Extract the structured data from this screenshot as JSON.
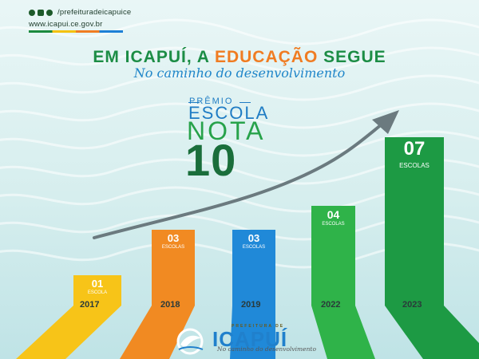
{
  "header": {
    "social_handle": "/prefeituradeicapuice",
    "website": "www.icapui.ce.gov.br",
    "social_icons": [
      "facebook-icon",
      "instagram-icon",
      "youtube-icon"
    ]
  },
  "headline": {
    "part1": "EM  ICAPUÍ, A ",
    "part2": "EDUCAÇÃO",
    "part3": " SEGUE",
    "tagline": "No caminho do desenvolvimento"
  },
  "award": {
    "line1": "PRÊMIO",
    "line2": "ESCOLA",
    "line3": "NOTA",
    "line4": "10"
  },
  "chart_data": {
    "type": "bar",
    "categories": [
      "2017",
      "2018",
      "2019",
      "2022",
      "2023"
    ],
    "values": [
      1,
      3,
      3,
      4,
      7
    ],
    "value_labels": [
      "01",
      "03",
      "03",
      "04",
      "07"
    ],
    "unit_labels": [
      "ESCOLA",
      "ESCOLAS",
      "ESCOLAS",
      "ESCOLAS",
      "ESCOLAS"
    ],
    "colors": [
      "#f7c418",
      "#f18a22",
      "#2089d8",
      "#2fb349",
      "#1d9a44"
    ]
  },
  "footer": {
    "logo_top": "PREFEITURA DE",
    "logo_name": "ICAPUÍ",
    "logo_sub": "No caminho do desenvolvimento"
  }
}
